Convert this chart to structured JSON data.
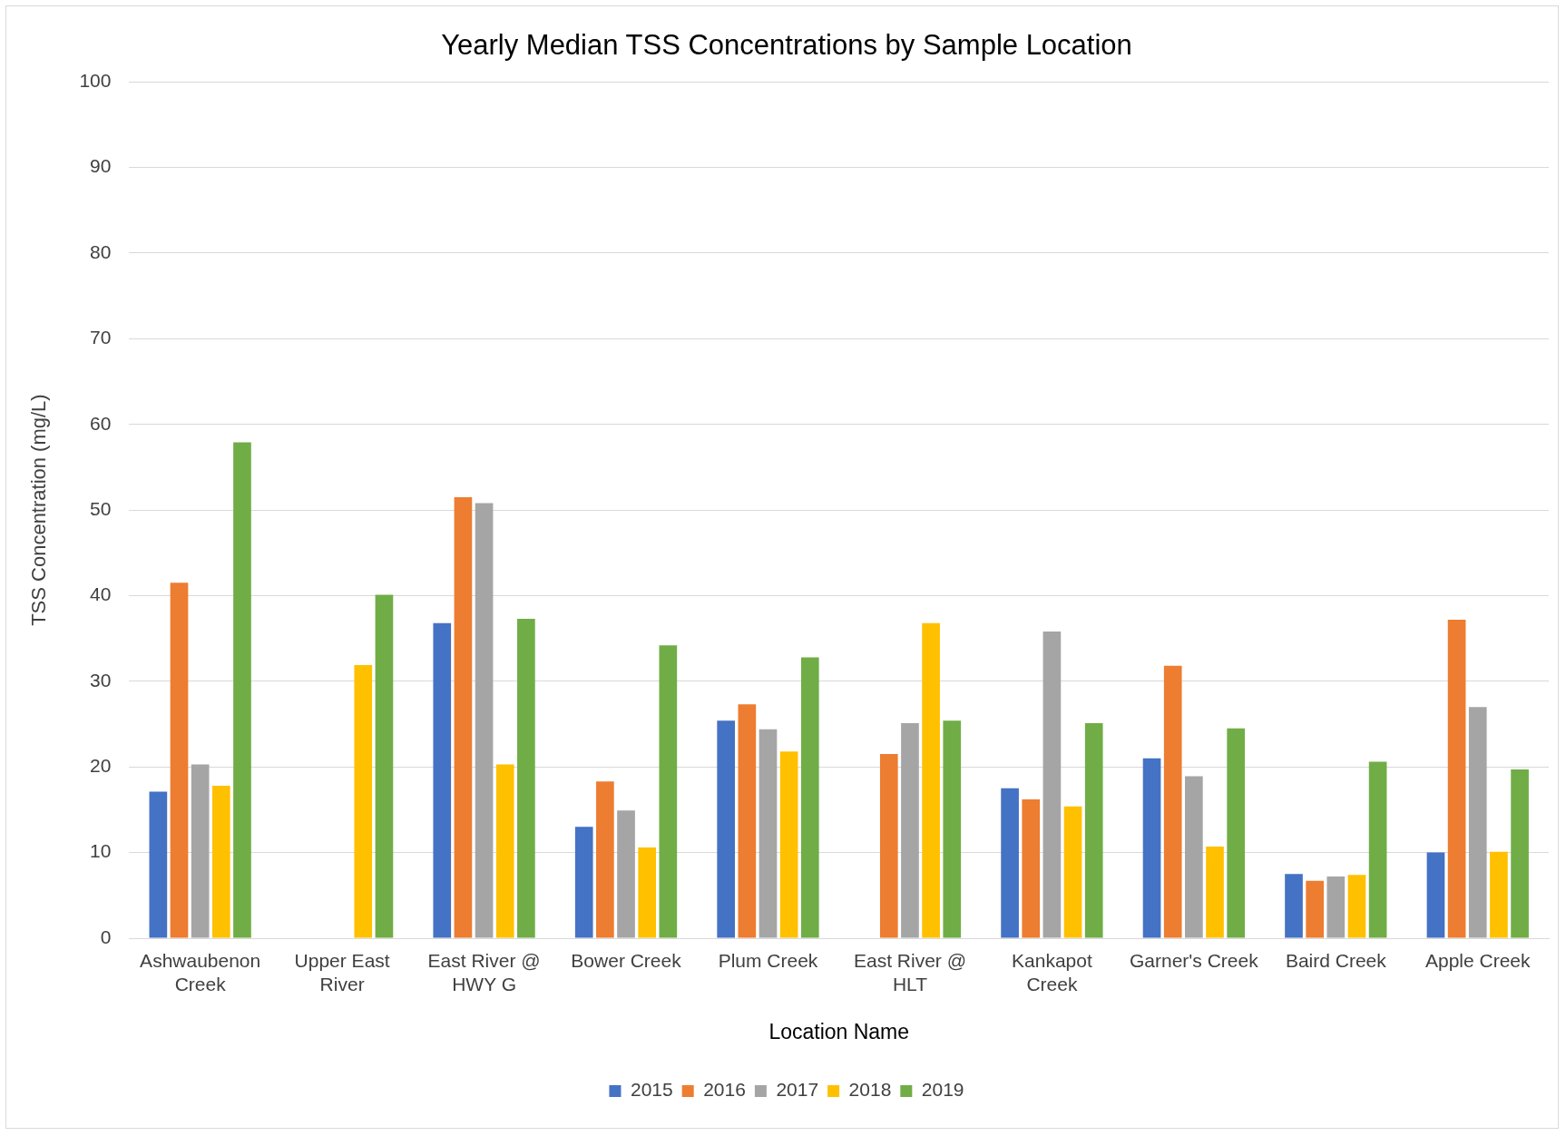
{
  "chart_data": {
    "type": "bar",
    "title": "Yearly Median TSS Concentrations by Sample Location",
    "xlabel": "Location Name",
    "ylabel": "TSS Concentration (mg/L)",
    "categories": [
      "Ashwaubenon Creek",
      "Upper East River",
      "East River @ HWY G",
      "Bower Creek",
      "Plum Creek",
      "East River @ HLT",
      "Kankapot Creek",
      "Garner's Creek",
      "Baird Creek",
      "Apple Creek"
    ],
    "series": [
      {
        "name": "2015",
        "color": "#4472c4",
        "values": [
          17.1,
          null,
          36.8,
          13.0,
          25.4,
          null,
          17.5,
          21.0,
          7.5,
          10.0
        ]
      },
      {
        "name": "2016",
        "color": "#ed7d31",
        "values": [
          41.5,
          null,
          51.5,
          18.3,
          27.3,
          21.5,
          16.2,
          31.8,
          6.7,
          37.2
        ]
      },
      {
        "name": "2017",
        "color": "#a5a5a5",
        "values": [
          20.3,
          null,
          50.8,
          14.9,
          24.4,
          25.1,
          35.8,
          18.9,
          7.2,
          27.0
        ]
      },
      {
        "name": "2018",
        "color": "#ffc000",
        "values": [
          17.8,
          31.9,
          20.3,
          10.6,
          21.8,
          36.8,
          15.4,
          10.7,
          7.4,
          10.1
        ]
      },
      {
        "name": "2019",
        "color": "#70ad47",
        "values": [
          57.9,
          40.1,
          37.3,
          34.2,
          32.8,
          25.4,
          25.1,
          24.5,
          20.6,
          19.7
        ]
      }
    ],
    "ylim": [
      0,
      100
    ],
    "yticks": [
      0,
      10,
      20,
      30,
      40,
      50,
      60,
      70,
      80,
      90,
      100
    ],
    "grid": "y",
    "legend": "bottom"
  }
}
